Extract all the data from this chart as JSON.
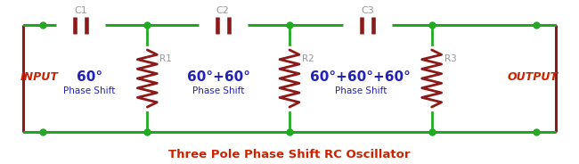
{
  "wire_color": "#22aa22",
  "cap_color": "#8B1a1a",
  "res_color": "#8B1a1a",
  "frame_color": "#8B1a1a",
  "dot_color": "#22aa22",
  "label_color_gray": "#999999",
  "label_color_blue": "#2222bb",
  "label_color_red": "#cc2200",
  "title": "Three Pole Phase Shift RC Oscillator",
  "title_color": "#cc2200",
  "input_text": "INPUT",
  "output_text": "OUTPUT",
  "cap_labels": [
    "C1",
    "C2",
    "C3"
  ],
  "res_labels": [
    "R1",
    "R2",
    "R3"
  ],
  "fig_width": 6.5,
  "fig_height": 1.84,
  "dpi": 100,
  "xlim": [
    0,
    13
  ],
  "ylim": [
    -0.6,
    4.0
  ]
}
